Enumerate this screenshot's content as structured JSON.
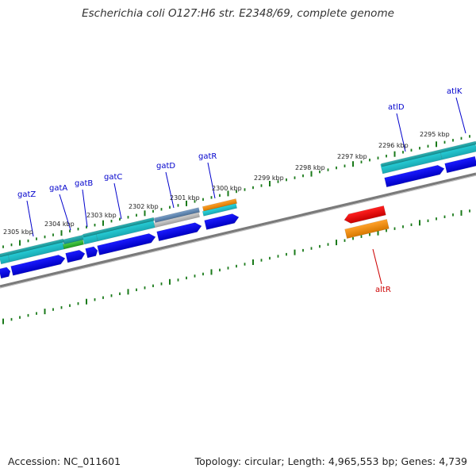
{
  "title": "Escherichia coli O127:H6 str. E2348/69, complete genome",
  "footer": {
    "accession": "Accession: NC_011601",
    "summary": "Topology: circular; Length: 4,965,553 bp; Genes: 4,739"
  },
  "colors": {
    "backbone": "#808080",
    "tick": "#1a7a1a",
    "label_blue": "#0000cc",
    "label_red": "#cc0000",
    "cds_blue": "#0000e6",
    "cyan": "#29c6cf",
    "teal": "#1aa6a8",
    "green": "#2cb02c",
    "orange": "#f08c10",
    "red": "#e60000",
    "steel": "#5f86b0",
    "gray": "#b8b8b8"
  },
  "kbp_labels": [
    "2305 kbp",
    "2304 kbp",
    "2303 kbp",
    "2302 kbp",
    "2301 kbp",
    "2300 kbp",
    "2299 kbp",
    "2298 kbp",
    "2297 kbp",
    "2296 kbp",
    "2295 kbp"
  ],
  "gene_labels": [
    "gatZ",
    "gatA",
    "gatB",
    "gatC",
    "gatD",
    "gatR",
    "atlD",
    "atlK",
    "altR"
  ]
}
